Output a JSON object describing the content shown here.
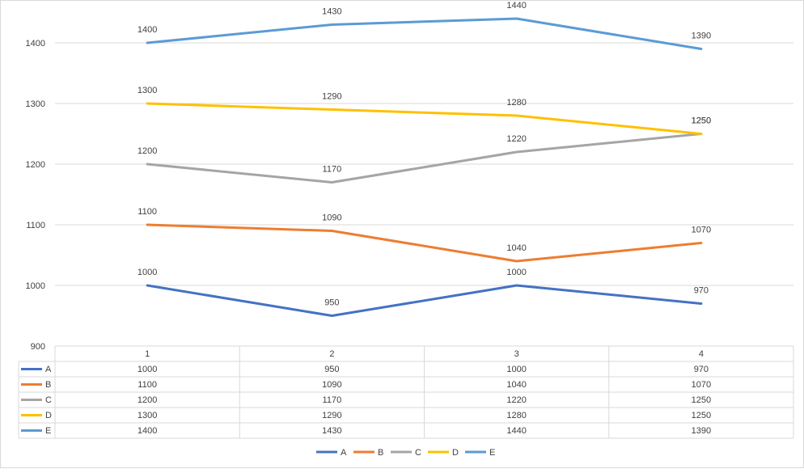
{
  "chart_data": {
    "type": "line",
    "title": "",
    "xlabel": "",
    "ylabel": "",
    "categories": [
      "1",
      "2",
      "3",
      "4"
    ],
    "ylim": [
      900,
      1450
    ],
    "yticks": [
      900,
      1000,
      1100,
      1200,
      1300,
      1400
    ],
    "grid": true,
    "data_labels": true,
    "data_table": true,
    "legend_position": "bottom",
    "series": [
      {
        "name": "A",
        "color": "#4472c4",
        "values": [
          1000,
          950,
          1000,
          970
        ]
      },
      {
        "name": "B",
        "color": "#ed7d31",
        "values": [
          1100,
          1090,
          1040,
          1070
        ]
      },
      {
        "name": "C",
        "color": "#a5a5a5",
        "values": [
          1200,
          1170,
          1220,
          1250
        ]
      },
      {
        "name": "D",
        "color": "#ffc000",
        "values": [
          1300,
          1290,
          1280,
          1250
        ]
      },
      {
        "name": "E",
        "color": "#5b9bd5",
        "values": [
          1400,
          1430,
          1440,
          1390
        ]
      }
    ]
  }
}
